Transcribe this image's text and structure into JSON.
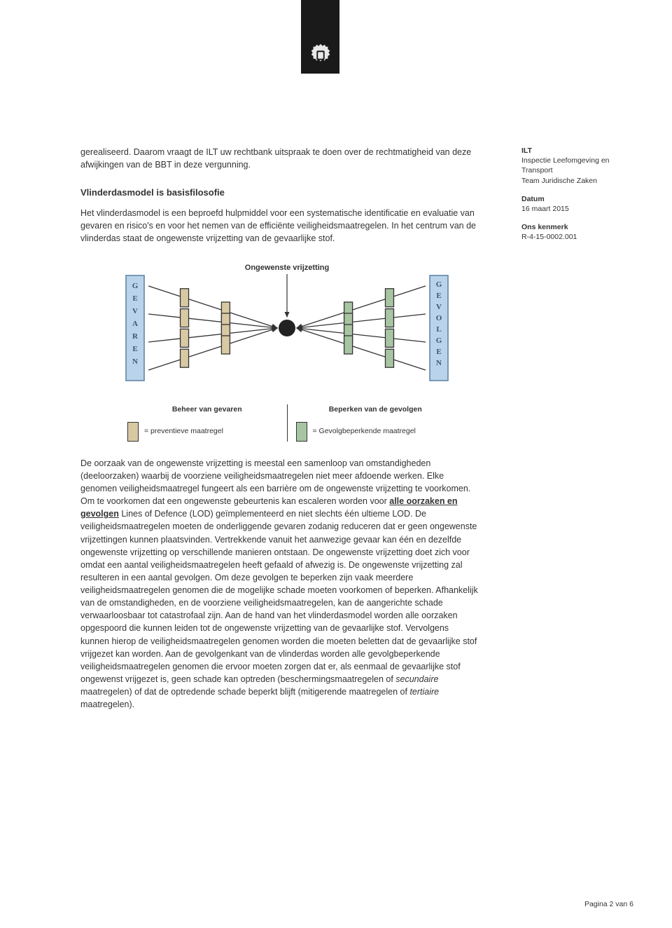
{
  "header": {
    "logo_alt": "Rijksoverheid logo"
  },
  "side": {
    "org_abbr": "ILT",
    "org_full": "Inspectie Leefomgeving en Transport",
    "dept": "Team Juridische Zaken",
    "date_label": "Datum",
    "date_value": "16 maart 2015",
    "ref_label": "Ons kenmerk",
    "ref_value": "R-4-15-0002.001"
  },
  "body": {
    "p1": "gerealiseerd. Daarom vraagt de ILT uw rechtbank uitspraak te doen over de rechtmatigheid van deze afwijkingen van de BBT in deze vergunning.",
    "h1": "Vlinderdasmodel is basisfilosofie",
    "p2": "Het vlinderdasmodel is een beproefd hulpmiddel voor een systematische identificatie en evaluatie van gevaren en risico's en voor het nemen van de efficiënte veiligheidsmaatregelen. In het centrum van de vlinderdas staat de ongewenste vrijzetting van de gevaarlijke stof.",
    "p3_a": "De oorzaak van de ongewenste vrijzetting is meestal een samenloop van omstandigheden (deeloorzaken) waarbij de voorziene veiligheidsmaatregelen niet meer afdoende werken. Elke genomen veiligheidsmaatregel fungeert als een barrière om de ongewenste vrijzetting te voorkomen. Om te voorkomen dat een ongewenste gebeurtenis kan escaleren worden voor ",
    "p3_emph": "alle oorzaken en gevolgen",
    "p3_b": " Lines of Defence (LOD) geïmplementeerd en niet slechts één ultieme LOD. De veiligheidsmaatregelen moeten de onderliggende gevaren zodanig reduceren dat er geen ongewenste vrijzettingen kunnen plaatsvinden. Vertrekkende vanuit het aanwezige gevaar kan één en dezelfde ongewenste vrijzetting op verschillende manieren ontstaan. De ongewenste vrijzetting doet zich voor omdat een aantal veiligheidsmaatregelen heeft gefaald of afwezig is. De ongewenste vrijzetting zal resulteren in een aantal gevolgen. Om deze gevolgen te beperken zijn vaak meerdere veiligheidsmaatregelen genomen die de mogelijke schade moeten voorkomen of beperken. Afhankelijk van de omstandigheden, en de voorziene veiligheidsmaatregelen, kan de aangerichte schade verwaarloosbaar tot catastrofaal zijn. Aan de hand van het vlinderdasmodel worden alle oorzaken opgespoord die kunnen leiden tot de ongewenste vrijzetting van de gevaarlijke stof. Vervolgens kunnen hierop de veiligheidsmaatregelen genomen worden die moeten beletten dat de gevaarlijke stof vrijgezet kan worden. Aan de gevolgenkant van de vlinderdas worden alle gevolgbeperkende veiligheidsmaatregelen genomen die ervoor moeten zorgen dat er, als eenmaal de gevaarlijke stof ongewenst vrijgezet is, geen schade kan optreden (beschermingsmaatregelen of ",
    "p3_i1": "secundaire",
    "p3_c": " maatregelen) of dat de optredende schade beperkt blijft (mitigerende maatregelen of ",
    "p3_i2": "tertiaire",
    "p3_d": " maatregelen)."
  },
  "diagram": {
    "type": "bowtie",
    "title": "Ongewenste vrijzetting",
    "left_label": "GEVAREN",
    "right_label": "GEVOLGEN",
    "colors": {
      "panel_bg": "#b9d3ea",
      "panel_border": "#5a7fa3",
      "swatch_preventive": "#d8c9a3",
      "swatch_corrective": "#a8c4a3",
      "center": "#222222",
      "line": "#333333",
      "text": "#3b5572",
      "arrow": "#333333"
    },
    "left_branches": 4,
    "right_branches": 4,
    "barriers_per_branch": 2,
    "legend": {
      "left_title": "Beheer van gevaren",
      "left_item": "= preventieve maatregel",
      "right_title": "Beperken van de gevolgen",
      "right_item": "= Gevolgbeperkende maatregel"
    },
    "font": {
      "title_size": 11,
      "label_size": 11,
      "legend_size": 10
    }
  },
  "footer": {
    "page_text": "Pagina 2 van 6"
  }
}
